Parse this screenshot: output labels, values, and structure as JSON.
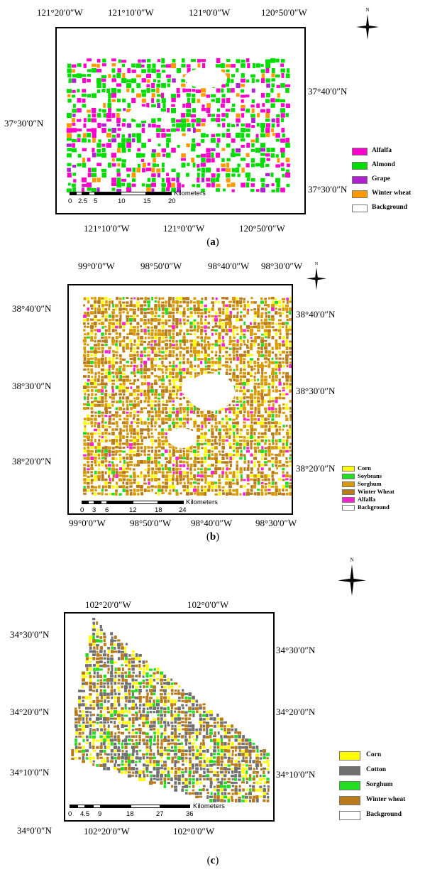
{
  "panels": [
    {
      "caption_letter": "a",
      "top_labels": [
        "121°20′0″W",
        "121°10′0″W",
        "121°0′0″W",
        "120°50′0″W"
      ],
      "bottom_labels": [
        "121°10′0″W",
        "121°0′0″W",
        "120°50′0″W"
      ],
      "left_labels": [
        "37°30′0″N"
      ],
      "right_labels": [
        "37°40′0″N",
        "37°30′0″N"
      ],
      "scale_ticks": [
        "0",
        "2.5",
        "5",
        "10",
        "15",
        "20"
      ],
      "scale_unit": "Kilometers",
      "north_label": "N",
      "legend": [
        {
          "label": "Alfalfa",
          "color": "#ff00cc"
        },
        {
          "label": "Almond",
          "color": "#00dd00"
        },
        {
          "label": "Grape",
          "color": "#b020d0"
        },
        {
          "label": "Winter wheat",
          "color": "#ff9900"
        },
        {
          "label": "Background",
          "color": "#ffffff"
        }
      ]
    },
    {
      "caption_letter": "b",
      "top_labels": [
        "99°0′0″W",
        "98°50′0″W",
        "98°40′0″W",
        "98°30′0″W"
      ],
      "bottom_labels": [
        "99°0′0″W",
        "98°50′0″W",
        "98°40′0″W",
        "98°30′0″W"
      ],
      "left_labels": [
        "38°40′0″N",
        "38°30′0″N",
        "38°20′0″N"
      ],
      "right_labels": [
        "38°40′0″N",
        "38°30′0″N",
        "38°20′0″N"
      ],
      "scale_ticks": [
        "0",
        "3",
        "6",
        "12",
        "18",
        "24"
      ],
      "scale_unit": "Kilometers",
      "north_label": "N",
      "legend": [
        {
          "label": "Corn",
          "color": "#ffff00"
        },
        {
          "label": "Soybeans",
          "color": "#22dd22"
        },
        {
          "label": "Sorghum",
          "color": "#d99a00"
        },
        {
          "label": "Winter Wheat",
          "color": "#b87a1a"
        },
        {
          "label": "Alfalfa",
          "color": "#ff22cc"
        },
        {
          "label": "Background",
          "color": "#ffffff"
        }
      ]
    },
    {
      "caption_letter": "c",
      "top_labels": [
        "102°20′0″W",
        "102°0′0″W"
      ],
      "bottom_labels": [
        "102°20′0″W",
        "102°0′0″W"
      ],
      "left_labels": [
        "34°30′0″N",
        "34°20′0″N",
        "34°10′0″N",
        "34°0′0″N"
      ],
      "right_labels": [
        "34°30′0″N",
        "34°20′0″N",
        "34°10′0″N"
      ],
      "scale_ticks": [
        "0",
        "4.5",
        "9",
        "18",
        "27",
        "36"
      ],
      "scale_unit": "Kilometers",
      "north_label": "N",
      "legend": [
        {
          "label": "Corn",
          "color": "#ffff00"
        },
        {
          "label": "Cotton",
          "color": "#707070"
        },
        {
          "label": "Sorghum",
          "color": "#22dd22"
        },
        {
          "label": "Winter wheat",
          "color": "#b87a1a"
        },
        {
          "label": "Background",
          "color": "#ffffff"
        }
      ]
    }
  ]
}
